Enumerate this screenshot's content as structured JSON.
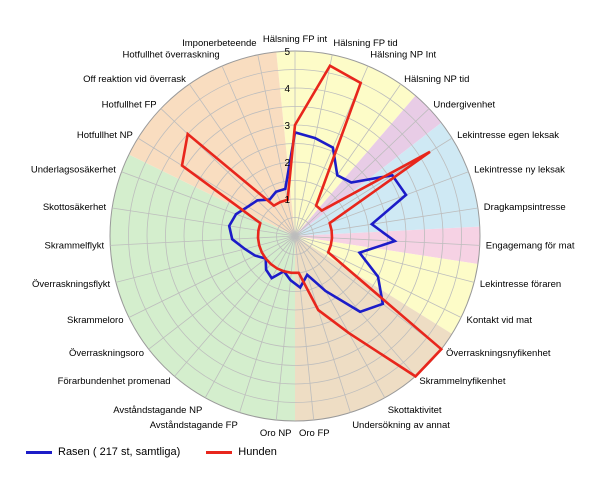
{
  "chart_data": {
    "type": "radar",
    "title": "",
    "rlim": [
      0,
      5
    ],
    "rticks": [
      "1",
      "2",
      "3",
      "4",
      "5"
    ],
    "grid": true,
    "legend_position": "bottom-left",
    "categories": [
      "Hälsning FP int",
      "Hälsning FP tid",
      "Hälsning NP Int",
      "Hälsning NP tid",
      "Undergivenhet",
      "Lekintresse egen leksak",
      "Lekintresse ny leksak",
      "Dragkampsintresse",
      "Engagemang för mat",
      "Lekintresse föraren",
      "Kontakt vid mat",
      "Överraskningsnyfikenhet",
      "Skrammelnyfikenhet",
      "Skottaktivitet",
      "Undersökning av annat",
      "Oro FP",
      "Oro NP",
      "Avståndstagande FP",
      "Avståndstagande NP",
      "Förarbundenhet promenad",
      "Överraskningsoro",
      "Skrammeloro",
      "Överraskningsflykt",
      "Skrammelflykt",
      "Skottosäkerhet",
      "Underlagsosäkerhet",
      "Hotfullhet NP",
      "Hotfullhet FP",
      "Off reaktion vid överrask",
      "Hotfullhet överraskning",
      "Imponerbeteende"
    ],
    "sectors": [
      {
        "from": 0,
        "to": 3,
        "color": "#fdfcc8"
      },
      {
        "from": 4,
        "to": 4,
        "color": "#e8cce6"
      },
      {
        "from": 5,
        "to": 7,
        "color": "#cfe9f4"
      },
      {
        "from": 8,
        "to": 8,
        "color": "#f6d2e4"
      },
      {
        "from": 9,
        "to": 10,
        "color": "#fdfcc8"
      },
      {
        "from": 11,
        "to": 15,
        "color": "#eeddc4"
      },
      {
        "from": 16,
        "to": 25,
        "color": "#d4eecd"
      },
      {
        "from": 26,
        "to": 30,
        "color": "#f9ddc0"
      }
    ],
    "series": [
      {
        "name": "Rasen ( 217 st, samtliga)",
        "color": "#1c1cc8",
        "values": [
          2.8,
          2.7,
          2.6,
          2.0,
          2.1,
          3.1,
          3.2,
          2.1,
          2.7,
          1.8,
          2.5,
          3.0,
          2.7,
          1.7,
          1.1,
          1.4,
          1.2,
          1.0,
          1.3,
          1.2,
          1.0,
          1.2,
          1.4,
          1.7,
          1.8,
          1.7,
          1.5,
          1.4,
          1.2,
          1.3,
          1.3
        ]
      },
      {
        "name": "Hunden",
        "color": "#e8261c",
        "values": [
          3.0,
          4.7,
          4.5,
          1.0,
          1.0,
          4.3,
          1.0,
          1.0,
          1.0,
          1.0,
          1.0,
          5.0,
          5.0,
          3.0,
          2.1,
          1.0,
          1.0,
          1.0,
          1.0,
          1.0,
          1.0,
          1.0,
          1.0,
          1.0,
          1.0,
          1.0,
          3.6,
          4.0,
          1.0,
          1.0,
          1.0
        ]
      }
    ]
  }
}
